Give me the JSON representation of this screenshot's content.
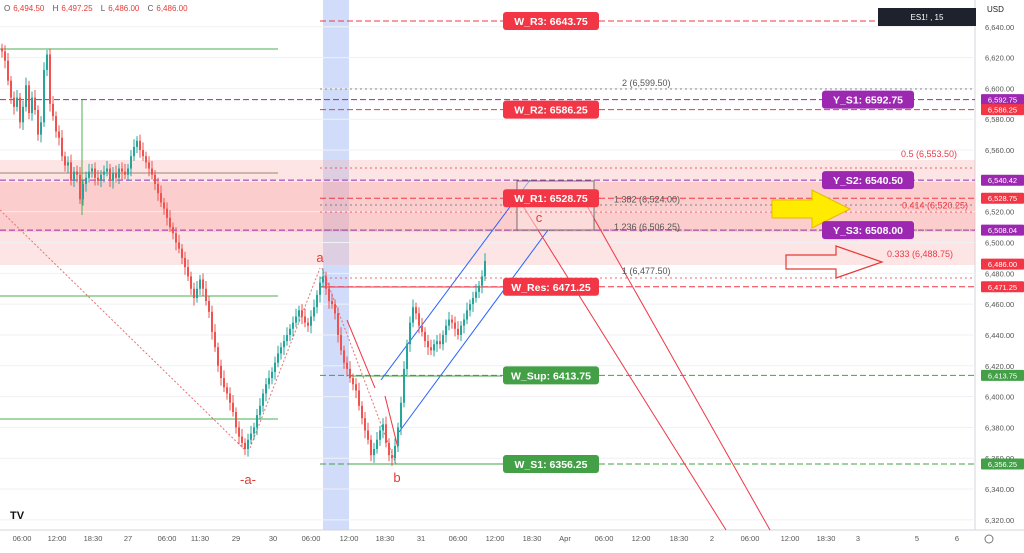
{
  "header": {
    "ohlc": [
      {
        "label": "O",
        "value": "6,494.50"
      },
      {
        "label": "H",
        "value": "6,497.25"
      },
      {
        "label": "L",
        "value": "6,486.00"
      },
      {
        "label": "C",
        "value": "6,486.00"
      }
    ],
    "symbol_interval": "ES1! , 15",
    "currency": "USD",
    "logo": "TV"
  },
  "chart_data": {
    "type": "candlestick",
    "ylim": [
      6310,
      6650
    ],
    "y_ticks": [
      6320,
      6340,
      6360,
      6380,
      6400,
      6420,
      6440,
      6460,
      6480,
      6500,
      6520,
      6540,
      6560,
      6580,
      6600,
      6620,
      6640
    ],
    "x_ticks": [
      "06:00",
      "12:00",
      "18:30",
      "27",
      "06:00",
      "11:30",
      "29",
      "30",
      "06:00",
      "12:00",
      "18:30",
      "31",
      "06:00",
      "12:00",
      "18:30",
      "Apr",
      "06:00",
      "12:00",
      "18:30",
      "2",
      "06:00",
      "12:00",
      "18:30",
      "3",
      "5",
      "6"
    ],
    "price_tags": [
      {
        "value": "6,592.75",
        "color": "#9c27b0"
      },
      {
        "value": "6,586.25",
        "color": "#f23645"
      },
      {
        "value": "6,540.42",
        "color": "#9c27b0"
      },
      {
        "value": "6,528.75",
        "color": "#f23645"
      },
      {
        "value": "6,508.04",
        "color": "#9c27b0"
      },
      {
        "value": "6,486.00",
        "color": "#f23645"
      },
      {
        "value": "6,471.25",
        "color": "#f23645"
      },
      {
        "value": "6,413.75",
        "color": "#43a047"
      },
      {
        "value": "6,356.25",
        "color": "#43a047"
      }
    ],
    "levels": [
      {
        "label": "W_R3: 6643.75",
        "price": 6643.75,
        "color": "#f23645",
        "style": "dashed"
      },
      {
        "label": "W_R2: 6586.25",
        "price": 6586.25,
        "color": "#f23645",
        "style": "dashed"
      },
      {
        "label": "W_R1: 6528.75",
        "price": 6528.75,
        "color": "#f23645",
        "style": "dashed"
      },
      {
        "label": "W_Res: 6471.25",
        "price": 6471.25,
        "color": "#f23645",
        "style": "dashed"
      },
      {
        "label": "W_Sup: 6413.75",
        "price": 6413.75,
        "color": "#43a047",
        "style": "dashed"
      },
      {
        "label": "W_S1: 6356.25",
        "price": 6356.25,
        "color": "#43a047",
        "style": "dashed"
      },
      {
        "label": "Y_S1: 6592.75",
        "price": 6592.75,
        "color": "#9c27b0",
        "style": "dashed"
      },
      {
        "label": "Y_S2: 6540.50",
        "price": 6540.5,
        "color": "#9c27b0",
        "style": "dashed"
      },
      {
        "label": "Y_S3: 6508.00",
        "price": 6508.0,
        "color": "#9c27b0",
        "style": "dashed"
      }
    ],
    "fib_labels": [
      {
        "text": "2 (6,599.50)",
        "price": 6599.5
      },
      {
        "text": "0.5 (6,553.50)",
        "price": 6553.5
      },
      {
        "text": "1.382 (6,524.00)",
        "price": 6524.0
      },
      {
        "text": "0.414 (6,520.25)",
        "price": 6520.25
      },
      {
        "text": "1.236 (6,506.25)",
        "price": 6506.25
      },
      {
        "text": "0.333 (6,488.75)",
        "price": 6488.75
      },
      {
        "text": "1 (6,477.50)",
        "price": 6477.5
      }
    ],
    "wave_labels": [
      "a",
      "-a-",
      "b",
      "c"
    ],
    "candles": [
      [
        0,
        6624
      ],
      [
        3,
        6618
      ],
      [
        6,
        6605
      ],
      [
        9,
        6594
      ],
      [
        12,
        6588
      ],
      [
        15,
        6594
      ],
      [
        18,
        6578
      ],
      [
        21,
        6588
      ],
      [
        24,
        6602
      ],
      [
        27,
        6584
      ],
      [
        30,
        6594
      ],
      [
        33,
        6586
      ],
      [
        36,
        6570
      ],
      [
        39,
        6578
      ],
      [
        42,
        6612
      ],
      [
        45,
        6622
      ],
      [
        48,
        6590
      ],
      [
        51,
        6582
      ],
      [
        54,
        6572
      ],
      [
        57,
        6568
      ],
      [
        60,
        6556
      ],
      [
        63,
        6550
      ],
      [
        66,
        6552
      ],
      [
        69,
        6540
      ],
      [
        72,
        6546
      ],
      [
        75,
        6544
      ],
      [
        78,
        6528
      ],
      [
        81,
        6538
      ],
      [
        84,
        6542
      ],
      [
        87,
        6546
      ],
      [
        90,
        6548
      ],
      [
        93,
        6542
      ],
      [
        96,
        6540
      ],
      [
        99,
        6544
      ],
      [
        102,
        6546
      ],
      [
        105,
        6548
      ],
      [
        108,
        6540
      ],
      [
        111,
        6545
      ],
      [
        114,
        6542
      ],
      [
        117,
        6548
      ],
      [
        120,
        6546
      ],
      [
        123,
        6544
      ],
      [
        126,
        6548
      ],
      [
        129,
        6556
      ],
      [
        132,
        6562
      ],
      [
        135,
        6566
      ],
      [
        138,
        6560
      ],
      [
        141,
        6556
      ],
      [
        144,
        6552
      ],
      [
        147,
        6548
      ],
      [
        150,
        6544
      ],
      [
        153,
        6538
      ],
      [
        156,
        6532
      ],
      [
        159,
        6526
      ],
      [
        162,
        6522
      ],
      [
        165,
        6516
      ],
      [
        168,
        6510
      ],
      [
        171,
        6506
      ],
      [
        174,
        6500
      ],
      [
        177,
        6496
      ],
      [
        180,
        6490
      ],
      [
        183,
        6484
      ],
      [
        186,
        6478
      ],
      [
        189,
        6470
      ],
      [
        192,
        6464
      ],
      [
        195,
        6470
      ],
      [
        198,
        6476
      ],
      [
        201,
        6470
      ],
      [
        204,
        6462
      ],
      [
        207,
        6455
      ],
      [
        210,
        6442
      ],
      [
        213,
        6432
      ],
      [
        216,
        6420
      ],
      [
        219,
        6412
      ],
      [
        222,
        6406
      ],
      [
        225,
        6402
      ],
      [
        228,
        6396
      ],
      [
        231,
        6390
      ],
      [
        234,
        6380
      ],
      [
        237,
        6374
      ],
      [
        240,
        6370
      ],
      [
        243,
        6366
      ],
      [
        246,
        6372
      ],
      [
        249,
        6376
      ],
      [
        252,
        6380
      ],
      [
        255,
        6388
      ],
      [
        258,
        6394
      ],
      [
        261,
        6402
      ],
      [
        264,
        6408
      ],
      [
        267,
        6412
      ],
      [
        270,
        6416
      ],
      [
        273,
        6422
      ],
      [
        276,
        6428
      ],
      [
        279,
        6432
      ],
      [
        282,
        6436
      ],
      [
        285,
        6440
      ],
      [
        288,
        6444
      ],
      [
        291,
        6448
      ],
      [
        294,
        6452
      ],
      [
        297,
        6456
      ],
      [
        300,
        6452
      ],
      [
        303,
        6448
      ],
      [
        306,
        6446
      ],
      [
        309,
        6452
      ],
      [
        312,
        6458
      ],
      [
        315,
        6466
      ],
      [
        318,
        6474
      ],
      [
        321,
        6478
      ],
      [
        324,
        6470
      ],
      [
        327,
        6462
      ],
      [
        330,
        6460
      ],
      [
        333,
        6454
      ],
      [
        336,
        6440
      ],
      [
        339,
        6430
      ],
      [
        342,
        6422
      ],
      [
        345,
        6418
      ],
      [
        348,
        6412
      ],
      [
        351,
        6408
      ],
      [
        354,
        6404
      ],
      [
        357,
        6394
      ],
      [
        360,
        6386
      ],
      [
        363,
        6378
      ],
      [
        366,
        6372
      ],
      [
        369,
        6362
      ],
      [
        372,
        6366
      ],
      [
        375,
        6372
      ],
      [
        378,
        6378
      ],
      [
        381,
        6382
      ],
      [
        384,
        6370
      ],
      [
        387,
        6362
      ],
      [
        390,
        6360
      ],
      [
        393,
        6368
      ],
      [
        396,
        6380
      ],
      [
        399,
        6396
      ],
      [
        402,
        6418
      ],
      [
        405,
        6434
      ],
      [
        408,
        6448
      ],
      [
        411,
        6458
      ],
      [
        414,
        6454
      ],
      [
        417,
        6446
      ],
      [
        420,
        6442
      ],
      [
        423,
        6436
      ],
      [
        426,
        6432
      ],
      [
        429,
        6430
      ],
      [
        432,
        6434
      ],
      [
        435,
        6436
      ],
      [
        438,
        6434
      ],
      [
        441,
        6440
      ],
      [
        444,
        6446
      ],
      [
        447,
        6450
      ],
      [
        450,
        6448
      ],
      [
        453,
        6444
      ],
      [
        456,
        6440
      ],
      [
        459,
        6446
      ],
      [
        462,
        6450
      ],
      [
        465,
        6456
      ],
      [
        468,
        6460
      ],
      [
        471,
        6464
      ],
      [
        474,
        6468
      ],
      [
        477,
        6472
      ],
      [
        480,
        6478
      ],
      [
        483,
        6488
      ]
    ]
  }
}
